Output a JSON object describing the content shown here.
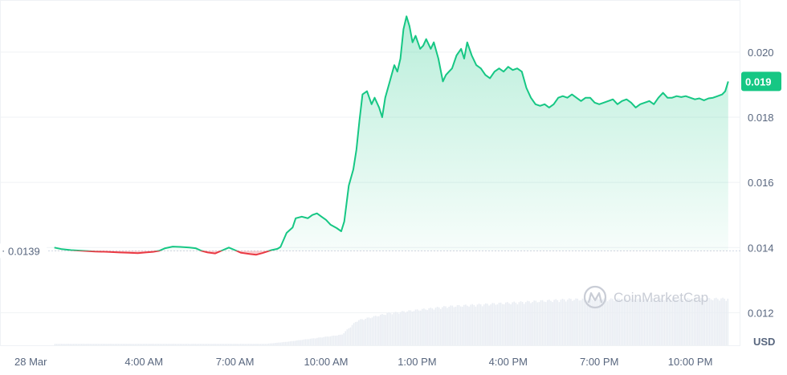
{
  "chart_data": {
    "type": "line",
    "unit": "USD",
    "open_label": "0.0139",
    "open_value": 0.0139,
    "current_label": "0.019",
    "current_value": 0.0191,
    "ylim": [
      0.011,
      0.0216
    ],
    "yticks": [
      {
        "value": 0.012,
        "label": "0.012"
      },
      {
        "value": 0.014,
        "label": "0.014"
      },
      {
        "value": 0.016,
        "label": "0.016"
      },
      {
        "value": 0.018,
        "label": "0.018"
      },
      {
        "value": 0.02,
        "label": "0.020"
      }
    ],
    "xlim": [
      0.5,
      25.0
    ],
    "xticks": [
      {
        "value": 0.0,
        "label": "28 Mar"
      },
      {
        "value": 4.0,
        "label": "4:00 AM"
      },
      {
        "value": 7.0,
        "label": "7:00 AM"
      },
      {
        "value": 10.0,
        "label": "10:00 AM"
      },
      {
        "value": 13.0,
        "label": "1:00 PM"
      },
      {
        "value": 16.0,
        "label": "4:00 PM"
      },
      {
        "value": 19.0,
        "label": "7:00 PM"
      },
      {
        "value": 22.0,
        "label": "10:00 PM"
      }
    ],
    "grid": true,
    "colors": {
      "up": "#16c784",
      "down": "#ea3943",
      "volume": "#e9edf3",
      "grid": "#eff2f5",
      "baseline": "#cfd6e4"
    },
    "series": [
      {
        "points": [
          [
            1.05,
            0.014
          ],
          [
            1.3,
            0.01395
          ],
          [
            1.6,
            0.01392
          ],
          [
            2.0,
            0.0139
          ],
          [
            2.4,
            0.01388
          ],
          [
            2.8,
            0.01387
          ],
          [
            3.2,
            0.01385
          ],
          [
            3.5,
            0.01384
          ],
          [
            3.8,
            0.01383
          ],
          [
            4.05,
            0.01385
          ],
          [
            4.3,
            0.01387
          ],
          [
            4.5,
            0.0139
          ],
          [
            4.7,
            0.01398
          ],
          [
            4.95,
            0.01403
          ],
          [
            5.2,
            0.01402
          ],
          [
            5.5,
            0.014
          ],
          [
            5.7,
            0.01398
          ],
          [
            5.9,
            0.0139
          ],
          [
            6.1,
            0.01385
          ],
          [
            6.35,
            0.01382
          ],
          [
            6.6,
            0.01392
          ],
          [
            6.8,
            0.014
          ],
          [
            7.0,
            0.01392
          ],
          [
            7.2,
            0.01384
          ],
          [
            7.5,
            0.0138
          ],
          [
            7.7,
            0.01378
          ],
          [
            7.9,
            0.01383
          ],
          [
            8.2,
            0.01392
          ],
          [
            8.4,
            0.01396
          ],
          [
            8.5,
            0.01402
          ],
          [
            8.7,
            0.01445
          ],
          [
            8.9,
            0.01462
          ],
          [
            9.0,
            0.0149
          ],
          [
            9.2,
            0.01495
          ],
          [
            9.4,
            0.0149
          ],
          [
            9.55,
            0.015
          ],
          [
            9.7,
            0.01505
          ],
          [
            9.85,
            0.01495
          ],
          [
            10.0,
            0.01485
          ],
          [
            10.15,
            0.0147
          ],
          [
            10.35,
            0.0146
          ],
          [
            10.5,
            0.0145
          ],
          [
            10.6,
            0.0148
          ],
          [
            10.75,
            0.0159
          ],
          [
            10.9,
            0.0164
          ],
          [
            11.0,
            0.017
          ],
          [
            11.1,
            0.0179
          ],
          [
            11.2,
            0.0187
          ],
          [
            11.35,
            0.0188
          ],
          [
            11.5,
            0.0184
          ],
          [
            11.6,
            0.0186
          ],
          [
            11.75,
            0.0183
          ],
          [
            11.85,
            0.018
          ],
          [
            11.95,
            0.0186
          ],
          [
            12.1,
            0.0191
          ],
          [
            12.25,
            0.0196
          ],
          [
            12.35,
            0.0194
          ],
          [
            12.45,
            0.0198
          ],
          [
            12.55,
            0.0207
          ],
          [
            12.65,
            0.0211
          ],
          [
            12.75,
            0.0208
          ],
          [
            12.85,
            0.0203
          ],
          [
            12.95,
            0.0205
          ],
          [
            13.1,
            0.0201
          ],
          [
            13.2,
            0.0202
          ],
          [
            13.3,
            0.0204
          ],
          [
            13.45,
            0.0201
          ],
          [
            13.55,
            0.0203
          ],
          [
            13.7,
            0.0198
          ],
          [
            13.85,
            0.0191
          ],
          [
            13.95,
            0.0193
          ],
          [
            14.05,
            0.0194
          ],
          [
            14.15,
            0.0195
          ],
          [
            14.3,
            0.0199
          ],
          [
            14.45,
            0.0201
          ],
          [
            14.55,
            0.0198
          ],
          [
            14.65,
            0.0203
          ],
          [
            14.8,
            0.0199
          ],
          [
            14.95,
            0.0196
          ],
          [
            15.1,
            0.0195
          ],
          [
            15.25,
            0.0193
          ],
          [
            15.4,
            0.0192
          ],
          [
            15.55,
            0.0194
          ],
          [
            15.7,
            0.0195
          ],
          [
            15.85,
            0.0194
          ],
          [
            16.0,
            0.01955
          ],
          [
            16.15,
            0.01945
          ],
          [
            16.3,
            0.0195
          ],
          [
            16.45,
            0.0194
          ],
          [
            16.6,
            0.0189
          ],
          [
            16.75,
            0.0186
          ],
          [
            16.9,
            0.0184
          ],
          [
            17.05,
            0.01835
          ],
          [
            17.2,
            0.0184
          ],
          [
            17.35,
            0.0183
          ],
          [
            17.5,
            0.0184
          ],
          [
            17.65,
            0.0186
          ],
          [
            17.8,
            0.01865
          ],
          [
            17.95,
            0.0186
          ],
          [
            18.1,
            0.0187
          ],
          [
            18.25,
            0.0186
          ],
          [
            18.4,
            0.0185
          ],
          [
            18.55,
            0.0186
          ],
          [
            18.7,
            0.0186
          ],
          [
            18.85,
            0.01845
          ],
          [
            19.0,
            0.0184
          ],
          [
            19.15,
            0.01845
          ],
          [
            19.3,
            0.0185
          ],
          [
            19.45,
            0.01855
          ],
          [
            19.6,
            0.0184
          ],
          [
            19.75,
            0.0185
          ],
          [
            19.9,
            0.01855
          ],
          [
            20.05,
            0.01845
          ],
          [
            20.2,
            0.0183
          ],
          [
            20.35,
            0.0184
          ],
          [
            20.5,
            0.01845
          ],
          [
            20.65,
            0.0185
          ],
          [
            20.8,
            0.0184
          ],
          [
            20.95,
            0.0186
          ],
          [
            21.1,
            0.01875
          ],
          [
            21.25,
            0.0186
          ],
          [
            21.4,
            0.0186
          ],
          [
            21.55,
            0.01865
          ],
          [
            21.7,
            0.01862
          ],
          [
            21.85,
            0.01865
          ],
          [
            22.0,
            0.0186
          ],
          [
            22.15,
            0.01855
          ],
          [
            22.3,
            0.01858
          ],
          [
            22.45,
            0.01852
          ],
          [
            22.6,
            0.01858
          ],
          [
            22.75,
            0.0186
          ],
          [
            22.9,
            0.01865
          ],
          [
            23.05,
            0.0187
          ],
          [
            23.15,
            0.0188
          ],
          [
            23.25,
            0.0191
          ]
        ]
      }
    ],
    "volume": [
      [
        1.05,
        0.2
      ],
      [
        8.0,
        0.2
      ],
      [
        8.7,
        0.5
      ],
      [
        10.5,
        1.5
      ],
      [
        11.0,
        3.5
      ],
      [
        12.0,
        4.5
      ],
      [
        14.0,
        5.5
      ],
      [
        16.0,
        6.0
      ],
      [
        18.0,
        6.5
      ],
      [
        20.0,
        6.5
      ],
      [
        23.25,
        6.6
      ]
    ],
    "volume_max": 10.0
  },
  "watermark": {
    "text": "CoinMarketCap",
    "icon": "coinmarketcap-logo-icon"
  }
}
